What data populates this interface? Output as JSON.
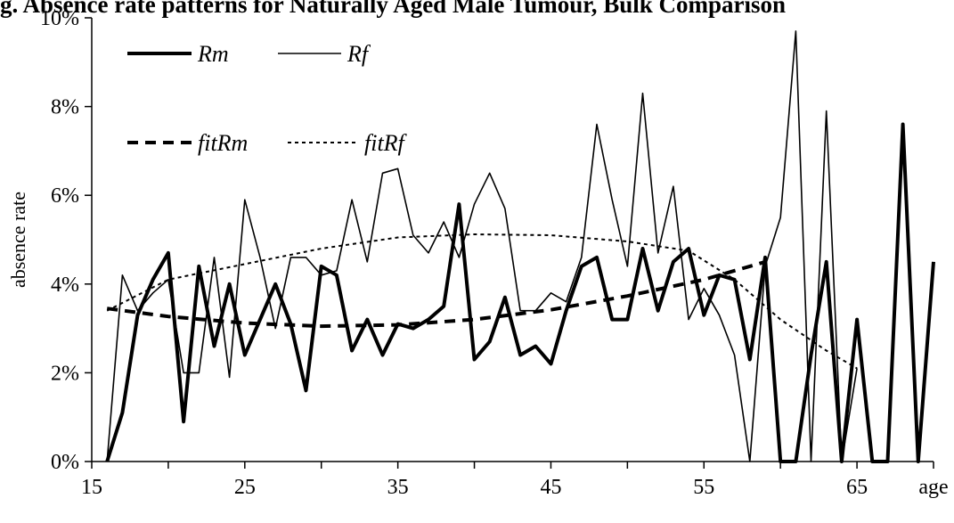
{
  "chart_data": {
    "type": "line",
    "title": "g. Absence rate patterns for Naturally Aged Male Tumour, Bulk Comparison",
    "xlabel": "age",
    "ylabel": "absence rate",
    "xlim": [
      15,
      70
    ],
    "ylim": [
      0,
      10
    ],
    "x_ticks": [
      "15",
      "25",
      "35",
      "45",
      "55",
      "65"
    ],
    "y_ticks": [
      "0%",
      "2%",
      "4%",
      "6%",
      "8%",
      "10%"
    ],
    "grid": false,
    "legend_position": "top-left",
    "series": [
      {
        "name": "Rm",
        "style": "solid-thick",
        "x": [
          16,
          17,
          18,
          19,
          20,
          21,
          22,
          23,
          24,
          25,
          26,
          27,
          28,
          29,
          30,
          31,
          32,
          33,
          34,
          35,
          36,
          37,
          38,
          39,
          40,
          41,
          42,
          43,
          44,
          45,
          46,
          47,
          48,
          49,
          50,
          51,
          52,
          53,
          54,
          55,
          56,
          57,
          58,
          59,
          60,
          61,
          62,
          63,
          64,
          65,
          66,
          67,
          68,
          69,
          70
        ],
        "y": [
          0,
          1.1,
          3.3,
          4.1,
          4.7,
          0.9,
          4.4,
          2.6,
          4.0,
          2.4,
          3.2,
          4.0,
          3.1,
          1.6,
          4.4,
          4.2,
          2.5,
          3.2,
          2.4,
          3.1,
          3.0,
          3.2,
          3.5,
          5.8,
          2.3,
          2.7,
          3.7,
          2.4,
          2.6,
          2.2,
          3.4,
          4.4,
          4.6,
          3.2,
          3.2,
          4.8,
          3.4,
          4.5,
          4.8,
          3.3,
          4.2,
          4.1,
          2.3,
          4.6,
          0,
          0,
          2.4,
          4.5,
          0,
          3.2,
          0,
          0,
          7.6,
          0,
          4.5
        ]
      },
      {
        "name": "Rf",
        "style": "solid-thin",
        "x": [
          16,
          17,
          18,
          19,
          20,
          21,
          22,
          23,
          24,
          25,
          26,
          27,
          28,
          29,
          30,
          31,
          32,
          33,
          34,
          35,
          36,
          37,
          38,
          39,
          40,
          41,
          42,
          43,
          44,
          45,
          46,
          47,
          48,
          49,
          50,
          51,
          52,
          53,
          54,
          55,
          56,
          57,
          58,
          59,
          60,
          61,
          62,
          63,
          64,
          65
        ],
        "y": [
          0,
          4.2,
          3.4,
          3.8,
          4.1,
          2.0,
          2.0,
          4.6,
          1.9,
          5.9,
          4.6,
          3.0,
          4.6,
          4.6,
          4.2,
          4.3,
          5.9,
          4.5,
          6.5,
          6.6,
          5.1,
          4.7,
          5.4,
          4.6,
          5.8,
          6.5,
          5.7,
          3.4,
          3.4,
          3.8,
          3.6,
          4.6,
          7.6,
          5.9,
          4.4,
          8.3,
          4.7,
          6.2,
          3.2,
          3.9,
          3.3,
          2.4,
          0,
          4.4,
          5.5,
          9.7,
          0,
          7.9,
          0,
          2.1
        ]
      },
      {
        "name": "fitRm",
        "style": "dashed-thick",
        "x": [
          16,
          20,
          25,
          30,
          35,
          40,
          45,
          50,
          55,
          59
        ],
        "y": [
          3.45,
          3.27,
          3.12,
          3.05,
          3.08,
          3.2,
          3.42,
          3.73,
          4.1,
          4.5
        ]
      },
      {
        "name": "fitRf",
        "style": "dotted-thin",
        "x": [
          16,
          20,
          25,
          30,
          35,
          40,
          45,
          50,
          54,
          57,
          60,
          63,
          65
        ],
        "y": [
          3.4,
          4.1,
          4.45,
          4.8,
          5.05,
          5.12,
          5.1,
          4.96,
          4.75,
          4.1,
          3.2,
          2.5,
          2.1
        ]
      }
    ]
  }
}
